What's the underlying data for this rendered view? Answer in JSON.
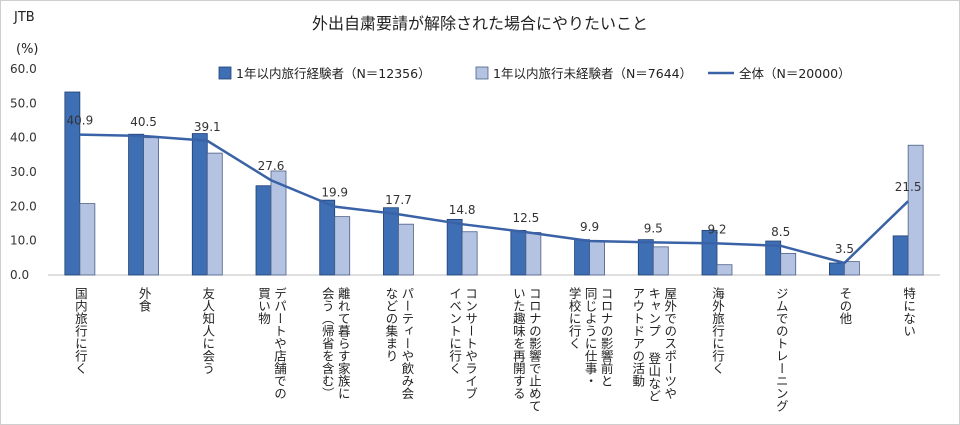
{
  "brand": "JTB",
  "colors": {
    "series1": "#3e6fb5",
    "series2": "#b4c3e2",
    "line": "#3a62a6",
    "grid": "#d9d9d9"
  },
  "chart_data": {
    "type": "bar",
    "title": "外出自粛要請が解除された場合にやりたいこと",
    "ylabel": "(%)",
    "ylim": [
      0,
      60
    ],
    "yticks": [
      "0.0",
      "10.0",
      "20.0",
      "30.0",
      "40.0",
      "50.0",
      "60.0"
    ],
    "legend_position": "top",
    "categories": [
      "国内旅行に行く",
      "外食",
      "友人知人に会う",
      "デパートや店舗での買い物",
      "離れて暮らす家族に会う（帰省を含む）",
      "パーティーや飲み会などの集まり",
      "コンサートやライブイベントに行く",
      "コロナの影響で止めていた趣味を再開する",
      "コロナの影響前と同じように仕事・学校に行く",
      "屋外でのスポーツやキャンプ登山などアウトドアの活動",
      "海外旅行に行く",
      "ジムでのトレーニング",
      "その他",
      "特にない"
    ],
    "category_lines": [
      [
        "国内旅行に行く"
      ],
      [
        "外食"
      ],
      [
        "友人知人に会う"
      ],
      [
        "デパートや店舗での",
        "買い物"
      ],
      [
        "離れて暮らす家族に",
        "会う（帰省を含む）"
      ],
      [
        "パーティーや飲み会",
        "などの集まり"
      ],
      [
        "コンサートやライブ",
        "イベントに行く"
      ],
      [
        "コロナの影響で止めて",
        "いた趣味を再開する"
      ],
      [
        "コロナの影響前と",
        "同じように仕事・",
        "学校に行く"
      ],
      [
        "屋外でのスポーツや",
        "キャンプ 登山など",
        "アウトドアの活動"
      ],
      [
        "海外旅行に行く"
      ],
      [
        "ジムでのトレーニング"
      ],
      [
        "その他"
      ],
      [
        "特にない"
      ]
    ],
    "series": [
      {
        "name": "1年以内旅行経験者（N＝12356）",
        "kind": "bar",
        "values": [
          53.3,
          41.0,
          41.2,
          26.0,
          21.8,
          19.6,
          16.2,
          13.0,
          10.3,
          10.3,
          13.0,
          9.9,
          3.5,
          11.4
        ]
      },
      {
        "name": "1年以内旅行未経験者（N＝7644）",
        "kind": "bar",
        "values": [
          20.8,
          40.0,
          35.5,
          30.3,
          17.0,
          14.8,
          12.6,
          12.4,
          9.9,
          8.2,
          3.0,
          6.3,
          3.9,
          37.8
        ]
      },
      {
        "name": "全体（N＝20000）",
        "kind": "line",
        "values": [
          40.9,
          40.5,
          39.1,
          27.6,
          19.9,
          17.7,
          14.8,
          12.5,
          9.9,
          9.5,
          9.2,
          8.5,
          3.5,
          21.5
        ],
        "labels": [
          "40.9",
          "40.5",
          "39.1",
          "27.6",
          "19.9",
          "17.7",
          "14.8",
          "12.5",
          "9.9",
          "9.5",
          "9.2",
          "8.5",
          "3.5",
          "21.5"
        ]
      }
    ]
  }
}
